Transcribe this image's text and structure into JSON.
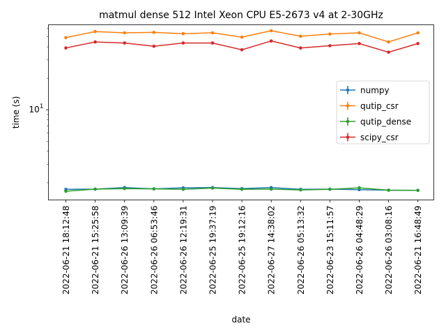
{
  "chart_data": {
    "type": "line",
    "title": "matmul dense 512 Intel Xeon CPU E5-2673 v4 at 2-30GHz",
    "xlabel": "date",
    "ylabel": "time (s)",
    "yscale": "log",
    "ylim": [
      1.37,
      65
    ],
    "y_tick_labels": [
      {
        "value": 10,
        "label": "10^1"
      }
    ],
    "categories": [
      "2022-06-21 18:12:48",
      "2022-06-21 15:25:58",
      "2022-06-26 13:09:39",
      "2022-06-26 06:53:46",
      "2022-06-26 12:19:31",
      "2022-06-25 19:37:19",
      "2022-06-25 19:12:16",
      "2022-06-27 14:38:02",
      "2022-06-26 05:13:32",
      "2022-06-23 15:11:57",
      "2022-06-26 04:48:29",
      "2022-06-26 03:08:16",
      "2022-06-21 16:48:49"
    ],
    "series": [
      {
        "name": "numpy",
        "color": "#1f77b4",
        "values": [
          1.73,
          1.74,
          1.8,
          1.75,
          1.79,
          1.8,
          1.76,
          1.8,
          1.73,
          1.74,
          1.72,
          1.7,
          1.69
        ]
      },
      {
        "name": "qutip_csr",
        "color": "#ff7f0e",
        "values": [
          49.0,
          56.0,
          54.5,
          55.0,
          53.5,
          54.5,
          49.5,
          57.0,
          50.5,
          53.0,
          54.5,
          44.5,
          54.5
        ]
      },
      {
        "name": "qutip_dense",
        "color": "#2ca02c",
        "values": [
          1.66,
          1.74,
          1.76,
          1.75,
          1.73,
          1.78,
          1.73,
          1.74,
          1.71,
          1.73,
          1.79,
          1.7,
          1.69
        ]
      },
      {
        "name": "scipy_csr",
        "color": "#d62728",
        "values": [
          39.0,
          44.5,
          43.5,
          40.5,
          43.5,
          43.5,
          37.5,
          45.5,
          39.0,
          41.0,
          43.0,
          35.5,
          43.0
        ]
      }
    ],
    "legend_position": "right",
    "grid": false
  }
}
